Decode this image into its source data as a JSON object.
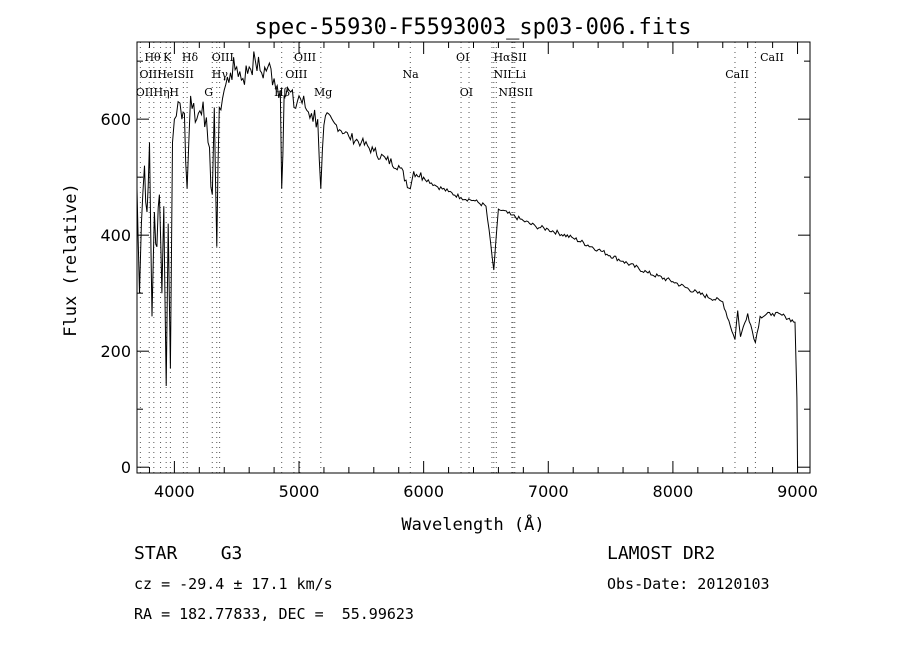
{
  "chart_data": {
    "type": "line",
    "title": "spec-55930-F5593003_sp03-006.fits",
    "xlabel": "Wavelength (Å)",
    "ylabel": "Flux (relative)",
    "xlim": [
      3700,
      9100
    ],
    "ylim": [
      -10,
      733
    ],
    "xticks": [
      4000,
      5000,
      6000,
      7000,
      8000,
      9000
    ],
    "yticks": [
      0,
      200,
      400,
      600
    ],
    "grid": false,
    "series": [
      {
        "name": "spectrum",
        "points": [
          [
            3700,
            480
          ],
          [
            3720,
            300
          ],
          [
            3735,
            420
          ],
          [
            3760,
            520
          ],
          [
            3780,
            440
          ],
          [
            3800,
            560
          ],
          [
            3820,
            260
          ],
          [
            3840,
            440
          ],
          [
            3860,
            380
          ],
          [
            3880,
            470
          ],
          [
            3900,
            300
          ],
          [
            3915,
            450
          ],
          [
            3934,
            140
          ],
          [
            3950,
            420
          ],
          [
            3968,
            170
          ],
          [
            3985,
            560
          ],
          [
            4000,
            600
          ],
          [
            4030,
            630
          ],
          [
            4060,
            600
          ],
          [
            4080,
            610
          ],
          [
            4102,
            480
          ],
          [
            4130,
            640
          ],
          [
            4180,
            600
          ],
          [
            4230,
            630
          ],
          [
            4270,
            560
          ],
          [
            4304,
            470
          ],
          [
            4320,
            620
          ],
          [
            4340,
            380
          ],
          [
            4360,
            620
          ],
          [
            4400,
            650
          ],
          [
            4450,
            680
          ],
          [
            4500,
            690
          ],
          [
            4550,
            670
          ],
          [
            4600,
            690
          ],
          [
            4650,
            700
          ],
          [
            4700,
            680
          ],
          [
            4750,
            690
          ],
          [
            4800,
            670
          ],
          [
            4850,
            650
          ],
          [
            4861,
            480
          ],
          [
            4880,
            640
          ],
          [
            4920,
            650
          ],
          [
            4960,
            620
          ],
          [
            5000,
            640
          ],
          [
            5050,
            620
          ],
          [
            5100,
            610
          ],
          [
            5150,
            600
          ],
          [
            5175,
            480
          ],
          [
            5200,
            590
          ],
          [
            5300,
            590
          ],
          [
            5400,
            570
          ],
          [
            5500,
            560
          ],
          [
            5600,
            545
          ],
          [
            5700,
            530
          ],
          [
            5800,
            520
          ],
          [
            5893,
            480
          ],
          [
            5920,
            510
          ],
          [
            6000,
            500
          ],
          [
            6100,
            485
          ],
          [
            6200,
            475
          ],
          [
            6300,
            465
          ],
          [
            6400,
            460
          ],
          [
            6500,
            450
          ],
          [
            6563,
            340
          ],
          [
            6600,
            445
          ],
          [
            6700,
            435
          ],
          [
            6800,
            425
          ],
          [
            6900,
            415
          ],
          [
            7000,
            410
          ],
          [
            7200,
            395
          ],
          [
            7400,
            375
          ],
          [
            7600,
            355
          ],
          [
            7800,
            335
          ],
          [
            8000,
            320
          ],
          [
            8200,
            300
          ],
          [
            8400,
            285
          ],
          [
            8498,
            220
          ],
          [
            8520,
            270
          ],
          [
            8542,
            225
          ],
          [
            8600,
            265
          ],
          [
            8662,
            215
          ],
          [
            8700,
            260
          ],
          [
            8800,
            265
          ],
          [
            8900,
            260
          ],
          [
            8980,
            250
          ],
          [
            8995,
            120
          ],
          [
            9000,
            0
          ]
        ]
      }
    ],
    "line_markers": {
      "wavelengths": [
        3727,
        3798,
        3835,
        3889,
        3934,
        3968,
        4072,
        4102,
        4304,
        4340,
        4363,
        4861,
        4959,
        5007,
        5175,
        5893,
        6300,
        6364,
        6548,
        6563,
        6583,
        6708,
        6717,
        6731,
        8498,
        8662
      ],
      "labels_row1": [
        [
          "Hθ",
          3760
        ],
        [
          "K",
          3910
        ],
        [
          "Hδ",
          4060
        ],
        [
          "OIII",
          4300
        ],
        [
          "OIII",
          4960
        ],
        [
          "OI",
          6260
        ],
        [
          "HαSII",
          6560
        ],
        [
          "CaII",
          8700
        ]
      ],
      "labels_row2": [
        [
          "OIIHeISII",
          3720
        ],
        [
          "Hγ",
          4300
        ],
        [
          "OIII",
          4890
        ],
        [
          "Na",
          5830
        ],
        [
          "NII Li",
          6560
        ],
        [
          "CaII",
          8420
        ]
      ],
      "labels_row3": [
        [
          "OIIHη",
          3690
        ],
        [
          "H",
          3960
        ],
        [
          "G",
          4240
        ],
        [
          "Hβ",
          4800
        ],
        [
          "Mg",
          5120
        ],
        [
          "OI",
          6290
        ],
        [
          "NIISII",
          6600
        ]
      ]
    }
  },
  "info": {
    "class": "STAR    G3",
    "survey": "LAMOST DR2",
    "cz": "cz = -29.4 ± 17.1 km/s",
    "obs_date": "Obs-Date: 20120103",
    "coords": "RA = 182.77833, DEC =  55.99623"
  }
}
